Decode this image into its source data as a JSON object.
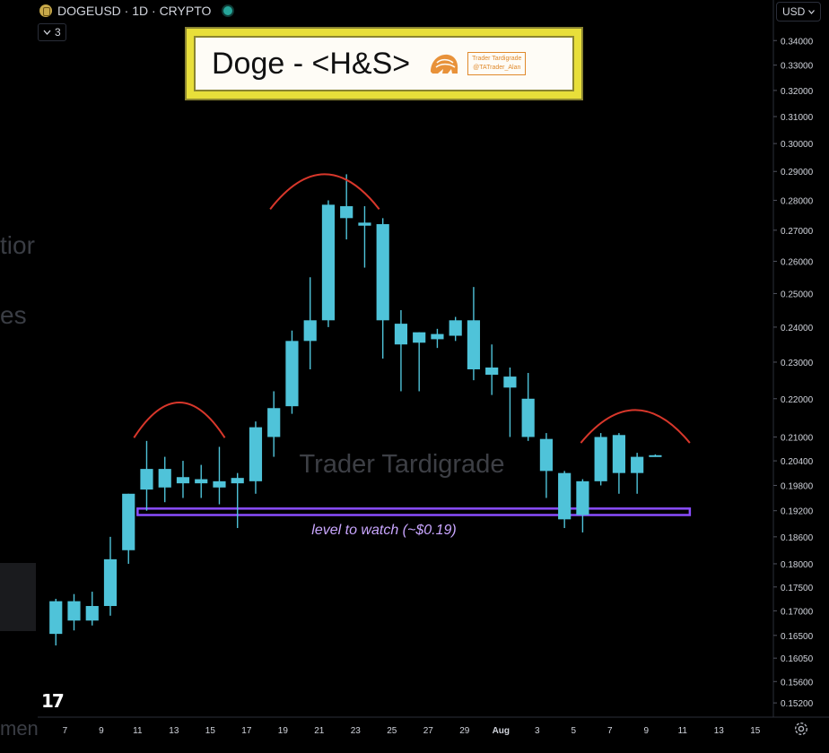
{
  "header": {
    "symbol": "DOGEUSD · 1D · CRYPTO",
    "collapse_count": "3",
    "currency": "USD"
  },
  "title_box": {
    "title": "Doge - <H&S>",
    "stamp_line1": "Trader Tardigrade",
    "stamp_line2": "@TATrader_Alan"
  },
  "side_ghosts": [
    "tior",
    "es",
    "men"
  ],
  "colors": {
    "background": "#000000",
    "candle": "#4fc3d9",
    "arc": "#d8372b",
    "level": "#8a4dff",
    "level_text": "#c9a6ff",
    "watermark": "#3d3f45"
  },
  "chart_data": {
    "type": "candlestick",
    "y_scale": "log",
    "ylim": [
      0.1507,
      0.3457
    ],
    "x_index_range": [
      -1.0,
      39.5
    ],
    "y_ticks": [
      "0.34000",
      "0.33000",
      "0.32000",
      "0.31000",
      "0.30000",
      "0.29000",
      "0.28000",
      "0.27000",
      "0.26000",
      "0.25000",
      "0.24000",
      "0.23000",
      "0.22000",
      "0.21000",
      "0.20400",
      "0.19800",
      "0.19200",
      "0.18600",
      "0.18000",
      "0.17500",
      "0.17000",
      "0.16500",
      "0.16050",
      "0.15600",
      "0.15200"
    ],
    "x_ticks": [
      {
        "label": "7",
        "i": 0.5
      },
      {
        "label": "9",
        "i": 2.5
      },
      {
        "label": "11",
        "i": 4.5
      },
      {
        "label": "13",
        "i": 6.5
      },
      {
        "label": "15",
        "i": 8.5
      },
      {
        "label": "17",
        "i": 10.5
      },
      {
        "label": "19",
        "i": 12.5
      },
      {
        "label": "21",
        "i": 14.5
      },
      {
        "label": "23",
        "i": 16.5
      },
      {
        "label": "25",
        "i": 18.5
      },
      {
        "label": "27",
        "i": 20.5
      },
      {
        "label": "29",
        "i": 22.5
      },
      {
        "label": "Aug",
        "i": 24.5
      },
      {
        "label": "3",
        "i": 26.5
      },
      {
        "label": "5",
        "i": 28.5
      },
      {
        "label": "7",
        "i": 30.5
      },
      {
        "label": "9",
        "i": 32.5
      },
      {
        "label": "11",
        "i": 34.5
      },
      {
        "label": "13",
        "i": 36.5
      },
      {
        "label": "15",
        "i": 38.5
      }
    ],
    "candles": [
      {
        "o": 0.1653,
        "h": 0.1725,
        "l": 0.163,
        "c": 0.172
      },
      {
        "o": 0.168,
        "h": 0.1735,
        "l": 0.166,
        "c": 0.172
      },
      {
        "o": 0.171,
        "h": 0.174,
        "l": 0.167,
        "c": 0.168
      },
      {
        "o": 0.171,
        "h": 0.186,
        "l": 0.169,
        "c": 0.181
      },
      {
        "o": 0.183,
        "h": 0.196,
        "l": 0.18,
        "c": 0.196
      },
      {
        "o": 0.197,
        "h": 0.209,
        "l": 0.192,
        "c": 0.202
      },
      {
        "o": 0.1975,
        "h": 0.205,
        "l": 0.194,
        "c": 0.202
      },
      {
        "o": 0.2,
        "h": 0.204,
        "l": 0.195,
        "c": 0.1985
      },
      {
        "o": 0.1985,
        "h": 0.203,
        "l": 0.195,
        "c": 0.1995
      },
      {
        "o": 0.199,
        "h": 0.2075,
        "l": 0.1935,
        "c": 0.1975
      },
      {
        "o": 0.1985,
        "h": 0.201,
        "l": 0.188,
        "c": 0.1998
      },
      {
        "o": 0.199,
        "h": 0.214,
        "l": 0.196,
        "c": 0.2125
      },
      {
        "o": 0.21,
        "h": 0.222,
        "l": 0.205,
        "c": 0.2175
      },
      {
        "o": 0.218,
        "h": 0.239,
        "l": 0.216,
        "c": 0.236
      },
      {
        "o": 0.236,
        "h": 0.255,
        "l": 0.228,
        "c": 0.242
      },
      {
        "o": 0.242,
        "h": 0.28,
        "l": 0.24,
        "c": 0.2785
      },
      {
        "o": 0.278,
        "h": 0.289,
        "l": 0.267,
        "c": 0.274
      },
      {
        "o": 0.2715,
        "h": 0.278,
        "l": 0.258,
        "c": 0.2725
      },
      {
        "o": 0.272,
        "h": 0.274,
        "l": 0.231,
        "c": 0.242
      },
      {
        "o": 0.241,
        "h": 0.245,
        "l": 0.222,
        "c": 0.235
      },
      {
        "o": 0.2355,
        "h": 0.2385,
        "l": 0.222,
        "c": 0.2385
      },
      {
        "o": 0.2365,
        "h": 0.2395,
        "l": 0.234,
        "c": 0.238
      },
      {
        "o": 0.2375,
        "h": 0.243,
        "l": 0.236,
        "c": 0.242
      },
      {
        "o": 0.242,
        "h": 0.252,
        "l": 0.225,
        "c": 0.228
      },
      {
        "o": 0.2285,
        "h": 0.235,
        "l": 0.221,
        "c": 0.2265
      },
      {
        "o": 0.226,
        "h": 0.2285,
        "l": 0.21,
        "c": 0.223
      },
      {
        "o": 0.22,
        "h": 0.227,
        "l": 0.209,
        "c": 0.21
      },
      {
        "o": 0.2095,
        "h": 0.211,
        "l": 0.195,
        "c": 0.2015
      },
      {
        "o": 0.201,
        "h": 0.2015,
        "l": 0.188,
        "c": 0.19
      },
      {
        "o": 0.191,
        "h": 0.1995,
        "l": 0.187,
        "c": 0.199
      },
      {
        "o": 0.199,
        "h": 0.211,
        "l": 0.198,
        "c": 0.21
      },
      {
        "o": 0.2105,
        "h": 0.211,
        "l": 0.196,
        "c": 0.201
      },
      {
        "o": 0.201,
        "h": 0.206,
        "l": 0.196,
        "c": 0.205
      },
      {
        "o": 0.2052,
        "h": 0.2056,
        "l": 0.205,
        "c": 0.2054
      }
    ],
    "candle_x_index": [
      0,
      1,
      2,
      3,
      4,
      5,
      6,
      7,
      8,
      9,
      10,
      11,
      12,
      13,
      14,
      15,
      16,
      17,
      18,
      19,
      20,
      21,
      22,
      23,
      24,
      25,
      26,
      27,
      28,
      29,
      30,
      31,
      32,
      33
    ],
    "arcs": [
      {
        "name": "left-shoulder",
        "x_start": 4.3,
        "x_end": 9.3,
        "y_base": 0.2098,
        "y_peak": 0.219
      },
      {
        "name": "head",
        "x_start": 11.8,
        "x_end": 17.8,
        "y_base": 0.277,
        "y_peak": 0.289
      },
      {
        "name": "right-shoulder",
        "x_start": 28.9,
        "x_end": 34.9,
        "y_base": 0.2085,
        "y_peak": 0.217
      }
    ],
    "level": {
      "value_top": 0.1925,
      "value_bottom": 0.191,
      "x_start": 4.5,
      "x_end": 34.9,
      "label": "level to watch (~$0.19)"
    },
    "watermark": "Trader Tardigrade"
  }
}
